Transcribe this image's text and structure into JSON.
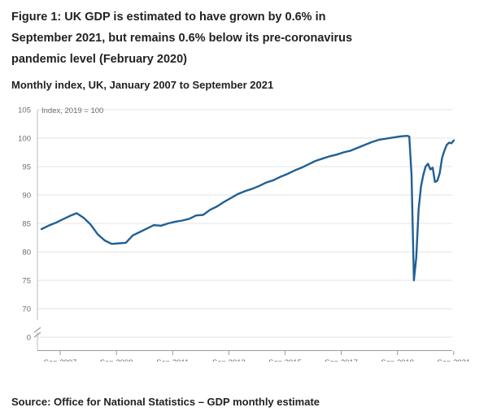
{
  "title": "Figure 1: UK GDP is estimated to have grown by 0.6% in September 2021, but remains 0.6% below its pre-coronavirus pandemic level (February 2020)",
  "subtitle": "Monthly index, UK, January 2007 to September 2021",
  "source": "Source: Office for National Statistics – GDP monthly estimate",
  "chart_data": {
    "type": "line",
    "title": "",
    "xlabel": "",
    "ylabel": "Index, 2019 = 100",
    "ylim": [
      0,
      105
    ],
    "y_ticks": [
      "105",
      "100",
      "95",
      "90",
      "85",
      "80",
      "75",
      "70",
      "0"
    ],
    "x_ticks": [
      "Sep 2007",
      "Sep 2009",
      "Sep 2011",
      "Sep 2013",
      "Sep 2015",
      "Sep 2017",
      "Sep 2019",
      "Sep 2021"
    ],
    "grid": "horizontal",
    "axis_break": "between 0 and 70",
    "line_color": "#206095",
    "series": [
      {
        "name": "",
        "x": [
          "2007-01",
          "2007-04",
          "2007-07",
          "2007-10",
          "2008-01",
          "2008-04",
          "2008-07",
          "2008-10",
          "2009-01",
          "2009-04",
          "2009-07",
          "2009-10",
          "2010-01",
          "2010-04",
          "2010-07",
          "2010-10",
          "2011-01",
          "2011-04",
          "2011-07",
          "2011-10",
          "2012-01",
          "2012-04",
          "2012-07",
          "2012-10",
          "2013-01",
          "2013-04",
          "2013-07",
          "2013-10",
          "2014-01",
          "2014-04",
          "2014-07",
          "2014-10",
          "2015-01",
          "2015-04",
          "2015-07",
          "2015-10",
          "2016-01",
          "2016-04",
          "2016-07",
          "2016-10",
          "2017-01",
          "2017-04",
          "2017-07",
          "2017-10",
          "2018-01",
          "2018-04",
          "2018-07",
          "2018-10",
          "2019-01",
          "2019-04",
          "2019-07",
          "2019-10",
          "2020-01",
          "2020-02",
          "2020-03",
          "2020-04",
          "2020-05",
          "2020-06",
          "2020-07",
          "2020-08",
          "2020-09",
          "2020-10",
          "2020-11",
          "2020-12",
          "2021-01",
          "2021-02",
          "2021-03",
          "2021-04",
          "2021-05",
          "2021-06",
          "2021-07",
          "2021-08",
          "2021-09"
        ],
        "values": [
          84.0,
          84.6,
          85.1,
          85.7,
          86.3,
          86.8,
          86.0,
          84.8,
          83.1,
          82.0,
          81.4,
          81.5,
          81.6,
          82.9,
          83.5,
          84.1,
          84.7,
          84.6,
          85.0,
          85.3,
          85.5,
          85.8,
          86.4,
          86.5,
          87.4,
          88.0,
          88.8,
          89.5,
          90.2,
          90.7,
          91.1,
          91.6,
          92.2,
          92.6,
          93.2,
          93.7,
          94.3,
          94.8,
          95.4,
          96.0,
          96.4,
          96.8,
          97.1,
          97.5,
          97.8,
          98.3,
          98.8,
          99.3,
          99.7,
          99.9,
          100.1,
          100.3,
          100.4,
          100.3,
          93.5,
          75.0,
          79.0,
          87.5,
          91.5,
          93.5,
          95.0,
          95.5,
          94.5,
          94.8,
          92.3,
          92.5,
          93.8,
          96.5,
          97.8,
          98.8,
          99.2,
          99.1,
          99.6
        ]
      }
    ]
  }
}
